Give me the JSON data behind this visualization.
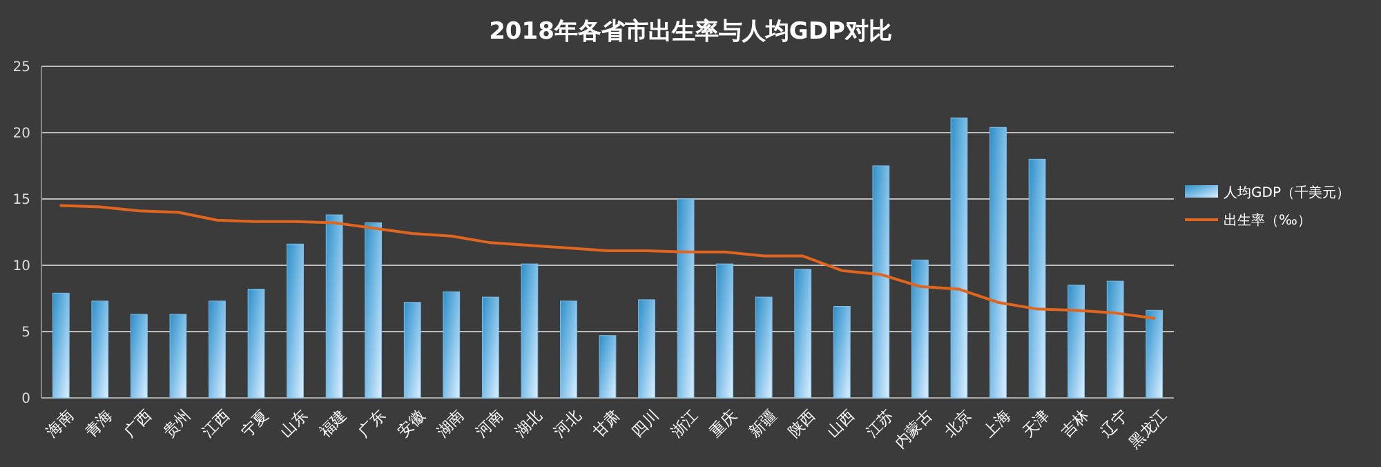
{
  "chart_data": {
    "type": "bar",
    "title": "2018年各省市出生率与人均GDP对比",
    "categories": [
      "海南",
      "青海",
      "广西",
      "贵州",
      "江西",
      "宁夏",
      "山东",
      "福建",
      "广东",
      "安徽",
      "湖南",
      "河南",
      "湖北",
      "河北",
      "甘肃",
      "四川",
      "浙江",
      "重庆",
      "新疆",
      "陕西",
      "山西",
      "江苏",
      "内蒙古",
      "北京",
      "上海",
      "天津",
      "吉林",
      "辽宁",
      "黑龙江"
    ],
    "series": [
      {
        "name": "人均GDP（千美元）",
        "color": "#7fbfe8",
        "values": [
          7.9,
          7.3,
          6.3,
          6.3,
          7.3,
          8.2,
          11.6,
          13.8,
          13.2,
          7.2,
          8.0,
          7.6,
          10.1,
          7.3,
          4.7,
          7.4,
          15.0,
          10.1,
          7.6,
          9.7,
          6.9,
          17.5,
          10.4,
          21.1,
          20.4,
          18.0,
          8.5,
          8.8,
          6.6
        ]
      },
      {
        "name": "出生率（‰）",
        "type": "line",
        "color": "#e0661f",
        "values": [
          14.5,
          14.4,
          14.1,
          14.0,
          13.4,
          13.3,
          13.3,
          13.2,
          12.8,
          12.4,
          12.2,
          11.7,
          11.5,
          11.3,
          11.1,
          11.1,
          11.0,
          11.0,
          10.7,
          10.7,
          9.6,
          9.3,
          8.4,
          8.2,
          7.2,
          6.7,
          6.6,
          6.4,
          6.0
        ]
      }
    ],
    "ylim": [
      0,
      25
    ],
    "yticks": [
      0,
      5,
      10,
      15,
      20,
      25
    ],
    "grid": "y",
    "legend": "right",
    "marker": "none",
    "line_style": "solid"
  }
}
